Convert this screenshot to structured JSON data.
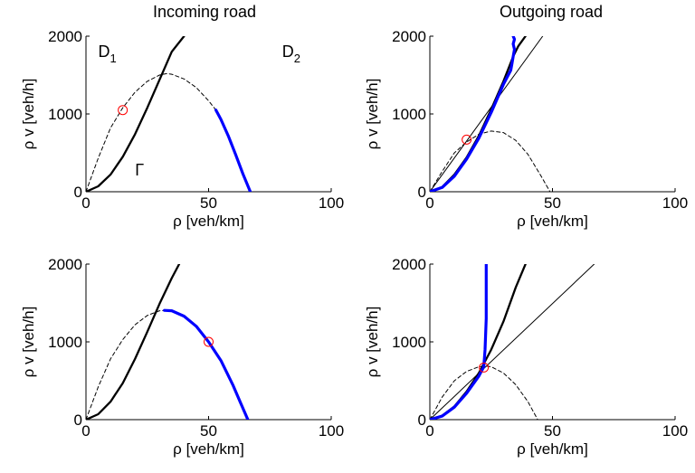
{
  "column_titles": [
    "Incoming road",
    "Outgoing road"
  ],
  "chart_data": [
    {
      "type": "line",
      "xlabel": "ρ [veh/km]",
      "ylabel": "ρ v [veh/h]",
      "xlim": [
        0,
        100
      ],
      "ylim": [
        0,
        2000
      ],
      "xticks": [
        0,
        50,
        100
      ],
      "yticks": [
        0,
        1000,
        2000
      ],
      "annotations": [
        {
          "text": "D",
          "sub": "1",
          "x": 5,
          "y": 1800
        },
        {
          "text": "D",
          "sub": "2",
          "x": 80,
          "y": 1800
        },
        {
          "text": "Γ",
          "x": 20,
          "y": 280
        }
      ],
      "series": [
        {
          "style": "dashed-black",
          "x": [
            0,
            5,
            10,
            15,
            20,
            25,
            30,
            33,
            35,
            40,
            45,
            50,
            53
          ],
          "y": [
            0,
            430,
            820,
            1080,
            1280,
            1420,
            1500,
            1520,
            1510,
            1450,
            1340,
            1170,
            1050
          ]
        },
        {
          "style": "solid-black",
          "x": [
            0,
            5,
            10,
            15,
            20,
            25,
            30,
            35,
            40
          ],
          "y": [
            0,
            70,
            220,
            450,
            740,
            1080,
            1440,
            1800,
            2000
          ]
        },
        {
          "style": "thick-blue",
          "x": [
            53,
            55,
            58,
            61,
            64,
            67
          ],
          "y": [
            1050,
            930,
            720,
            480,
            230,
            0
          ]
        },
        {
          "style": "red-circle",
          "x": [
            15
          ],
          "y": [
            1050
          ]
        }
      ]
    },
    {
      "type": "line",
      "xlabel": "ρ [veh/km]",
      "ylabel": "ρ v [veh/h]",
      "xlim": [
        0,
        100
      ],
      "ylim": [
        0,
        2000
      ],
      "xticks": [
        0,
        50,
        100
      ],
      "yticks": [
        0,
        1000,
        2000
      ],
      "series": [
        {
          "style": "dashed-black",
          "x": [
            0,
            5,
            10,
            15,
            20,
            25,
            30,
            35,
            40,
            45,
            49
          ],
          "y": [
            0,
            260,
            500,
            640,
            740,
            780,
            760,
            660,
            480,
            220,
            0
          ]
        },
        {
          "style": "solid-black",
          "x": [
            0,
            5,
            10,
            15,
            20,
            25,
            30,
            34,
            36,
            39
          ],
          "y": [
            0,
            60,
            220,
            440,
            720,
            1060,
            1420,
            1740,
            1870,
            2000
          ]
        },
        {
          "style": "thin-black",
          "x": [
            0,
            46
          ],
          "y": [
            0,
            2000
          ]
        },
        {
          "style": "thick-blue",
          "x": [
            0,
            5,
            10,
            15,
            20,
            25,
            30,
            33,
            33.5,
            34,
            34.5,
            34,
            34.5,
            34
          ],
          "y": [
            0,
            55,
            200,
            420,
            690,
            1020,
            1380,
            1560,
            1650,
            1740,
            1830,
            1900,
            1960,
            2000
          ]
        },
        {
          "style": "red-circle",
          "x": [
            15
          ],
          "y": [
            670
          ]
        }
      ]
    },
    {
      "type": "line",
      "xlabel": "ρ [veh/km]",
      "ylabel": "ρ v [veh/h]",
      "xlim": [
        0,
        100
      ],
      "ylim": [
        0,
        2000
      ],
      "xticks": [
        0,
        50,
        100
      ],
      "yticks": [
        0,
        1000,
        2000
      ],
      "series": [
        {
          "style": "dashed-black",
          "x": [
            0,
            5,
            10,
            15,
            20,
            25,
            30,
            32
          ],
          "y": [
            0,
            420,
            780,
            1030,
            1220,
            1340,
            1400,
            1405
          ]
        },
        {
          "style": "solid-black",
          "x": [
            0,
            5,
            10,
            15,
            20,
            25,
            30,
            35,
            38
          ],
          "y": [
            0,
            70,
            230,
            470,
            780,
            1130,
            1490,
            1820,
            2000
          ]
        },
        {
          "style": "thick-blue",
          "x": [
            32,
            35,
            40,
            45,
            50,
            55,
            60,
            63,
            66
          ],
          "y": [
            1405,
            1400,
            1330,
            1200,
            1000,
            760,
            440,
            220,
            0
          ]
        },
        {
          "style": "red-circle",
          "x": [
            50
          ],
          "y": [
            1000
          ]
        }
      ]
    },
    {
      "type": "line",
      "xlabel": "ρ [veh/km]",
      "ylabel": "ρ v [veh/h]",
      "xlim": [
        0,
        100
      ],
      "ylim": [
        0,
        2000
      ],
      "xticks": [
        0,
        50,
        100
      ],
      "yticks": [
        0,
        1000,
        2000
      ],
      "series": [
        {
          "style": "dashed-black",
          "x": [
            0,
            5,
            10,
            15,
            20,
            23,
            25,
            30,
            35,
            40,
            44
          ],
          "y": [
            0,
            290,
            500,
            620,
            680,
            690,
            680,
            600,
            450,
            230,
            0
          ]
        },
        {
          "style": "solid-black",
          "x": [
            0,
            5,
            10,
            15,
            20,
            25,
            30,
            35,
            39
          ],
          "y": [
            0,
            50,
            170,
            360,
            600,
            900,
            1260,
            1700,
            2000
          ]
        },
        {
          "style": "thin-black",
          "x": [
            0,
            67
          ],
          "y": [
            0,
            2000
          ]
        },
        {
          "style": "thick-blue",
          "x": [
            0,
            5,
            10,
            15,
            20,
            22,
            22.5,
            23,
            23,
            23
          ],
          "y": [
            0,
            45,
            160,
            340,
            560,
            680,
            900,
            1300,
            1700,
            2000
          ]
        },
        {
          "style": "red-circle",
          "x": [
            22
          ],
          "y": [
            670
          ]
        }
      ]
    }
  ]
}
